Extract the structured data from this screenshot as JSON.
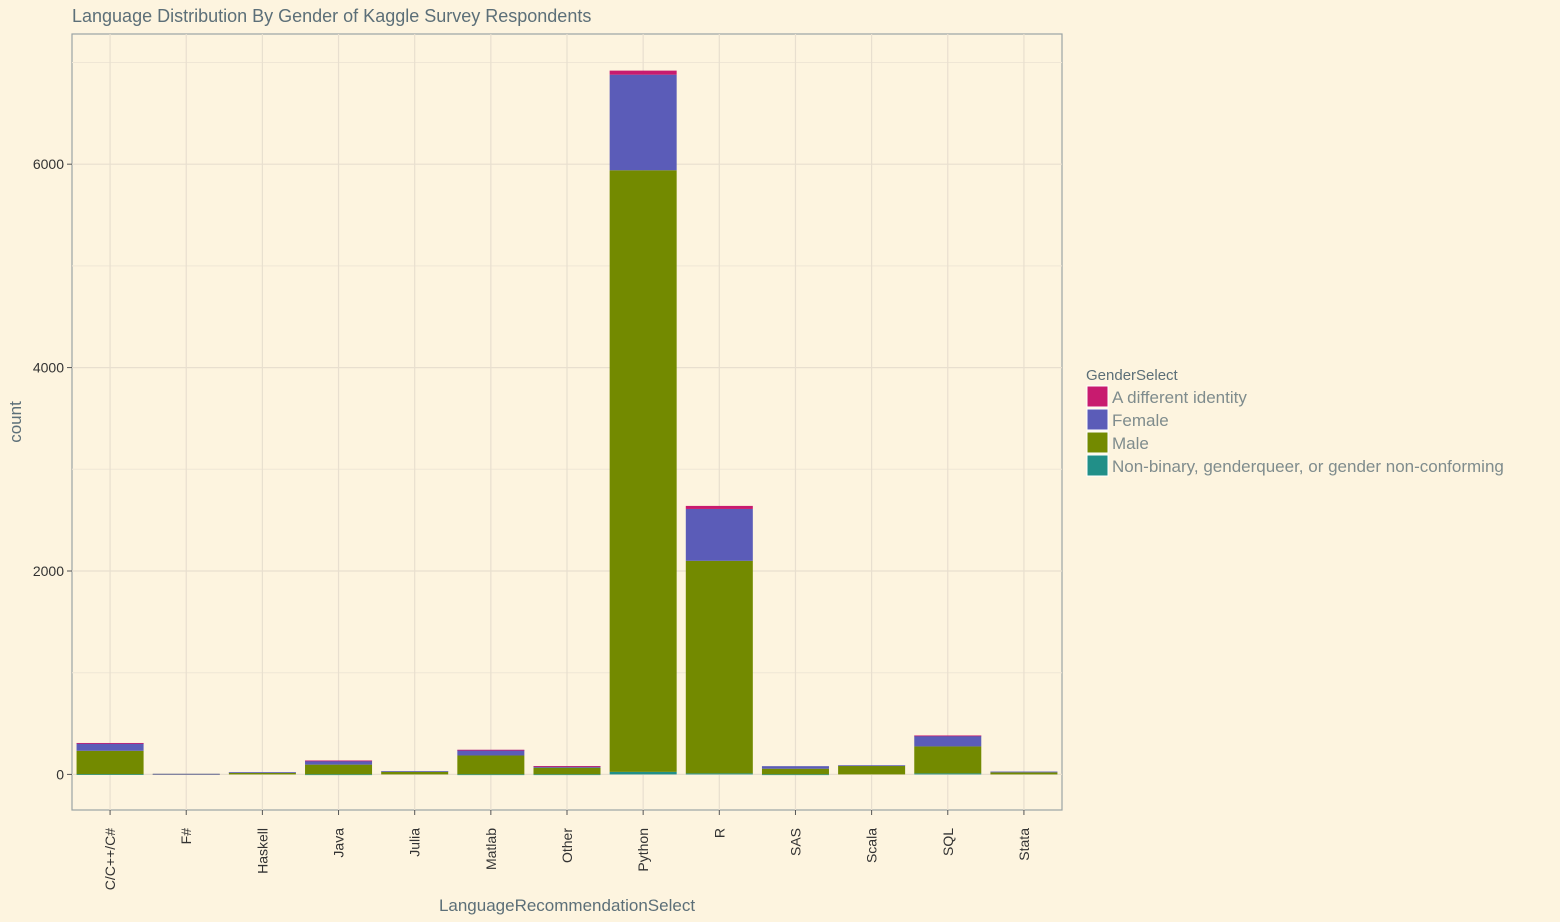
{
  "chart_data": {
    "type": "bar",
    "stacked": true,
    "title": "Language Distribution By Gender of Kaggle Survey Respondents",
    "xlabel": "LanguageRecommendationSelect",
    "ylabel": "count",
    "ylim": [
      -350,
      7280
    ],
    "yticks": [
      0,
      2000,
      4000,
      6000
    ],
    "grid": true,
    "legend_position": "right",
    "legend_title": "GenderSelect",
    "categories": [
      "C/C++/C#",
      "F#",
      "Haskell",
      "Java",
      "Julia",
      "Matlab",
      "Other",
      "Python",
      "R",
      "SAS",
      "Scala",
      "SQL",
      "Stata"
    ],
    "series": [
      {
        "name": "Non-binary, genderqueer, or gender non-conforming",
        "color": "#218f88",
        "values": [
          2,
          0,
          0,
          1,
          0,
          1,
          1,
          25,
          10,
          1,
          0,
          10,
          0
        ]
      },
      {
        "name": "Male",
        "color": "#738a00",
        "values": [
          230,
          5,
          18,
          95,
          28,
          185,
          65,
          5915,
          2090,
          55,
          85,
          265,
          20
        ]
      },
      {
        "name": "Female",
        "color": "#5b5cb8",
        "values": [
          75,
          1,
          4,
          40,
          4,
          55,
          15,
          940,
          510,
          25,
          5,
          105,
          8
        ]
      },
      {
        "name": "A different identity",
        "color": "#c81b6f",
        "values": [
          2,
          0,
          0,
          1,
          0,
          1,
          1,
          40,
          30,
          0,
          0,
          3,
          0
        ]
      }
    ],
    "legend_order": [
      "A different identity",
      "Female",
      "Male",
      "Non-binary, genderqueer, or gender non-conforming"
    ]
  }
}
